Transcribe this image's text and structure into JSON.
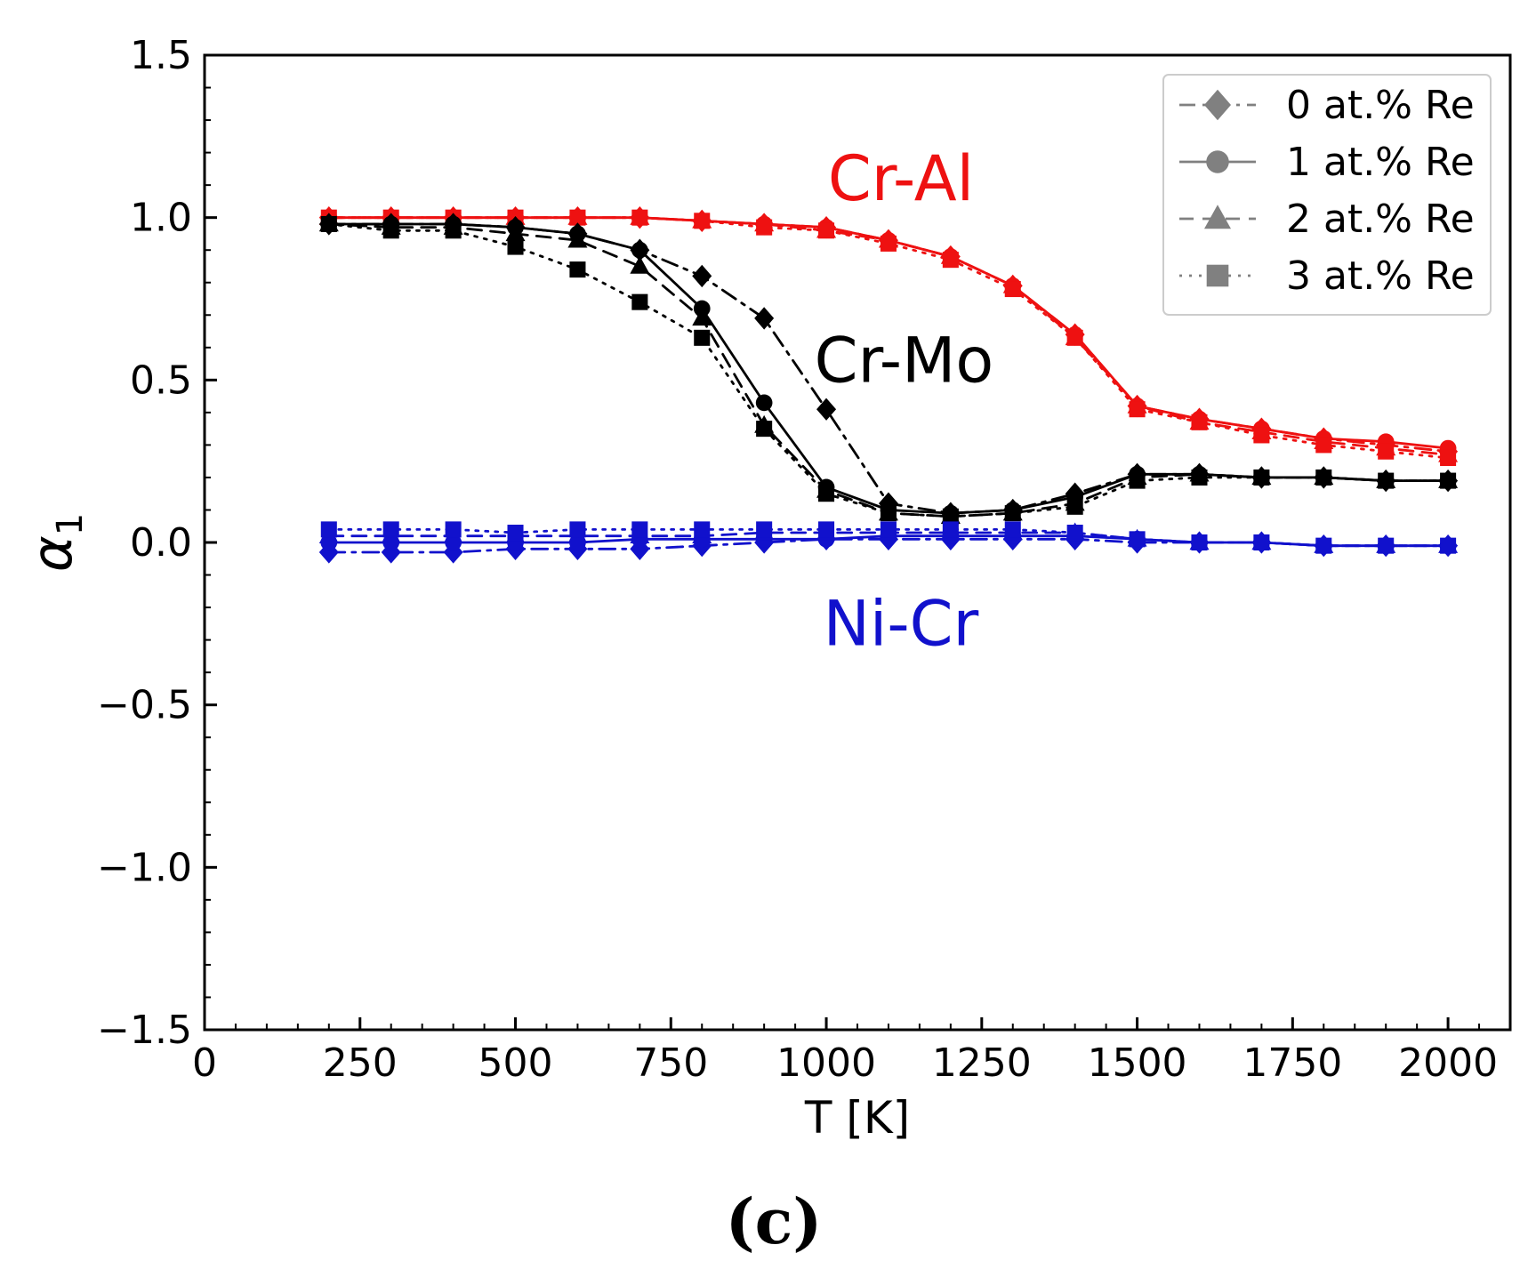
{
  "chart_data": {
    "type": "line",
    "xlabel": "T [K]",
    "ylabel": "α",
    "ylabel_subscript": "1",
    "xlim": [
      0,
      2100
    ],
    "ylim": [
      -1.5,
      1.5
    ],
    "x_ticks": [
      0,
      250,
      500,
      750,
      1000,
      1250,
      1500,
      1750,
      2000
    ],
    "x_tick_labels": [
      "0",
      "250",
      "500",
      "750",
      "1000",
      "1250",
      "1500",
      "1750",
      "2000"
    ],
    "y_ticks": [
      -1.5,
      -1.0,
      -0.5,
      0.0,
      0.5,
      1.0,
      1.5
    ],
    "y_tick_labels": [
      "−1.5",
      "−1.0",
      "−0.5",
      "0.0",
      "0.5",
      "1.0",
      "1.5"
    ],
    "grid": false,
    "legend": {
      "position": "top-right",
      "entries": [
        {
          "label": "0 at.% Re",
          "marker": "diamond",
          "linestyle": "dashdot",
          "color": "#808080"
        },
        {
          "label": "1 at.% Re",
          "marker": "circle",
          "linestyle": "solid",
          "color": "#808080"
        },
        {
          "label": "2 at.% Re",
          "marker": "triangle",
          "linestyle": "dashed",
          "color": "#808080"
        },
        {
          "label": "3 at.% Re",
          "marker": "square",
          "linestyle": "dotted",
          "color": "#808080"
        }
      ]
    },
    "annotations": [
      {
        "text": "Cr-Al",
        "color": "#ee1111",
        "x": 1120,
        "y": 1.12
      },
      {
        "text": "Cr-Mo",
        "color": "#000000",
        "x": 1125,
        "y": 0.56
      },
      {
        "text": "Ni-Cr",
        "color": "#1111cc",
        "x": 1120,
        "y": -0.25
      }
    ],
    "x": [
      200,
      300,
      400,
      500,
      600,
      700,
      800,
      900,
      1000,
      1100,
      1200,
      1300,
      1400,
      1500,
      1600,
      1700,
      1800,
      1900,
      2000
    ],
    "groups": [
      {
        "name": "Cr-Al",
        "color": "#ee1111",
        "series": [
          {
            "name": "0 at.% Re",
            "marker": "diamond",
            "linestyle": "dashdot",
            "values": [
              1.0,
              1.0,
              1.0,
              1.0,
              1.0,
              1.0,
              0.99,
              0.98,
              0.97,
              0.93,
              0.88,
              0.79,
              0.64,
              0.42,
              0.38,
              0.35,
              0.32,
              0.3,
              0.28
            ]
          },
          {
            "name": "1 at.% Re",
            "marker": "circle",
            "linestyle": "solid",
            "values": [
              1.0,
              1.0,
              1.0,
              1.0,
              1.0,
              1.0,
              0.99,
              0.98,
              0.97,
              0.93,
              0.88,
              0.79,
              0.64,
              0.42,
              0.38,
              0.35,
              0.32,
              0.31,
              0.29
            ]
          },
          {
            "name": "2 at.% Re",
            "marker": "triangle",
            "linestyle": "dashed",
            "values": [
              1.0,
              1.0,
              1.0,
              1.0,
              1.0,
              1.0,
              0.99,
              0.98,
              0.96,
              0.93,
              0.88,
              0.79,
              0.63,
              0.42,
              0.37,
              0.34,
              0.31,
              0.29,
              0.27
            ]
          },
          {
            "name": "3 at.% Re",
            "marker": "square",
            "linestyle": "dotted",
            "values": [
              1.0,
              1.0,
              1.0,
              1.0,
              1.0,
              1.0,
              0.99,
              0.97,
              0.96,
              0.92,
              0.87,
              0.78,
              0.63,
              0.41,
              0.37,
              0.33,
              0.3,
              0.28,
              0.26
            ]
          }
        ]
      },
      {
        "name": "Cr-Mo",
        "color": "#000000",
        "series": [
          {
            "name": "0 at.% Re",
            "marker": "diamond",
            "linestyle": "dashdot",
            "values": [
              0.98,
              0.98,
              0.98,
              0.97,
              0.95,
              0.9,
              0.82,
              0.69,
              0.41,
              0.12,
              0.09,
              0.1,
              0.15,
              0.21,
              0.21,
              0.2,
              0.2,
              0.19,
              0.19
            ]
          },
          {
            "name": "1 at.% Re",
            "marker": "circle",
            "linestyle": "solid",
            "values": [
              0.98,
              0.98,
              0.98,
              0.97,
              0.95,
              0.9,
              0.72,
              0.43,
              0.17,
              0.1,
              0.09,
              0.1,
              0.14,
              0.21,
              0.21,
              0.2,
              0.2,
              0.19,
              0.19
            ]
          },
          {
            "name": "2 at.% Re",
            "marker": "triangle",
            "linestyle": "dashed",
            "values": [
              0.98,
              0.97,
              0.97,
              0.95,
              0.93,
              0.85,
              0.69,
              0.36,
              0.16,
              0.09,
              0.08,
              0.09,
              0.12,
              0.2,
              0.21,
              0.2,
              0.2,
              0.19,
              0.19
            ]
          },
          {
            "name": "3 at.% Re",
            "marker": "square",
            "linestyle": "dotted",
            "values": [
              0.98,
              0.96,
              0.96,
              0.91,
              0.84,
              0.74,
              0.63,
              0.35,
              0.15,
              0.09,
              0.08,
              0.09,
              0.11,
              0.19,
              0.2,
              0.2,
              0.2,
              0.19,
              0.19
            ]
          }
        ]
      },
      {
        "name": "Ni-Cr",
        "color": "#1111cc",
        "series": [
          {
            "name": "0 at.% Re",
            "marker": "diamond",
            "linestyle": "dashdot",
            "values": [
              -0.03,
              -0.03,
              -0.03,
              -0.02,
              -0.02,
              -0.02,
              -0.01,
              0.0,
              0.01,
              0.01,
              0.01,
              0.01,
              0.01,
              0.0,
              0.0,
              0.0,
              -0.01,
              -0.01,
              -0.01
            ]
          },
          {
            "name": "1 at.% Re",
            "marker": "circle",
            "linestyle": "solid",
            "values": [
              0.0,
              0.0,
              0.0,
              0.0,
              0.0,
              0.01,
              0.01,
              0.01,
              0.01,
              0.02,
              0.02,
              0.02,
              0.02,
              0.01,
              0.0,
              0.0,
              -0.01,
              -0.01,
              -0.01
            ]
          },
          {
            "name": "2 at.% Re",
            "marker": "triangle",
            "linestyle": "dashed",
            "values": [
              0.02,
              0.02,
              0.02,
              0.02,
              0.02,
              0.02,
              0.02,
              0.03,
              0.03,
              0.03,
              0.03,
              0.03,
              0.03,
              0.01,
              0.0,
              0.0,
              -0.01,
              -0.01,
              -0.01
            ]
          },
          {
            "name": "3 at.% Re",
            "marker": "square",
            "linestyle": "dotted",
            "values": [
              0.04,
              0.04,
              0.04,
              0.03,
              0.04,
              0.04,
              0.04,
              0.04,
              0.04,
              0.04,
              0.04,
              0.04,
              0.03,
              0.01,
              0.0,
              0.0,
              -0.01,
              -0.01,
              -0.01
            ]
          }
        ]
      }
    ]
  },
  "caption": "(c)"
}
